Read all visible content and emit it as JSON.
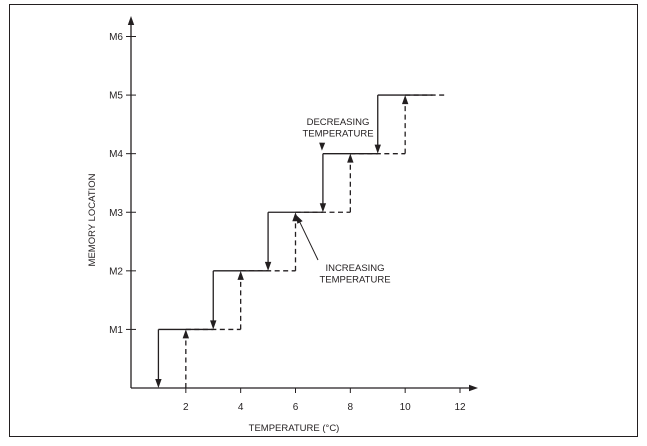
{
  "chart_data": {
    "type": "line",
    "xlabel": "TEMPERATURE (°C)",
    "ylabel": "MEMORY LOCATION",
    "x_ticks": [
      2,
      4,
      6,
      8,
      10,
      12
    ],
    "y_ticks": [
      "M1",
      "M2",
      "M3",
      "M4",
      "M5",
      "M6"
    ],
    "xlim": [
      0,
      12
    ],
    "ylim": [
      0,
      6
    ],
    "grid": false,
    "series": [
      {
        "style": "solid",
        "points": [
          [
            1,
            0
          ],
          [
            1,
            1
          ],
          [
            3,
            1
          ],
          [
            3,
            2
          ],
          [
            5,
            2
          ],
          [
            5,
            3
          ],
          [
            7,
            3
          ],
          [
            7,
            4
          ],
          [
            9,
            4
          ],
          [
            9,
            5
          ],
          [
            11,
            5
          ]
        ]
      },
      {
        "style": "dashed",
        "points": [
          [
            2,
            0
          ],
          [
            2,
            1
          ],
          [
            4,
            1
          ],
          [
            4,
            2
          ],
          [
            6,
            2
          ],
          [
            6,
            3
          ],
          [
            8,
            3
          ],
          [
            8,
            4
          ],
          [
            10,
            4
          ],
          [
            10,
            5
          ],
          [
            11.5,
            5
          ]
        ]
      }
    ],
    "annotations": [
      {
        "lines": [
          "DECREASING",
          "TEMPERATURE"
        ],
        "target": [
          7,
          4
        ]
      },
      {
        "lines": [
          "INCREASING",
          "TEMPERATURE"
        ],
        "target": [
          6,
          3
        ]
      }
    ]
  }
}
